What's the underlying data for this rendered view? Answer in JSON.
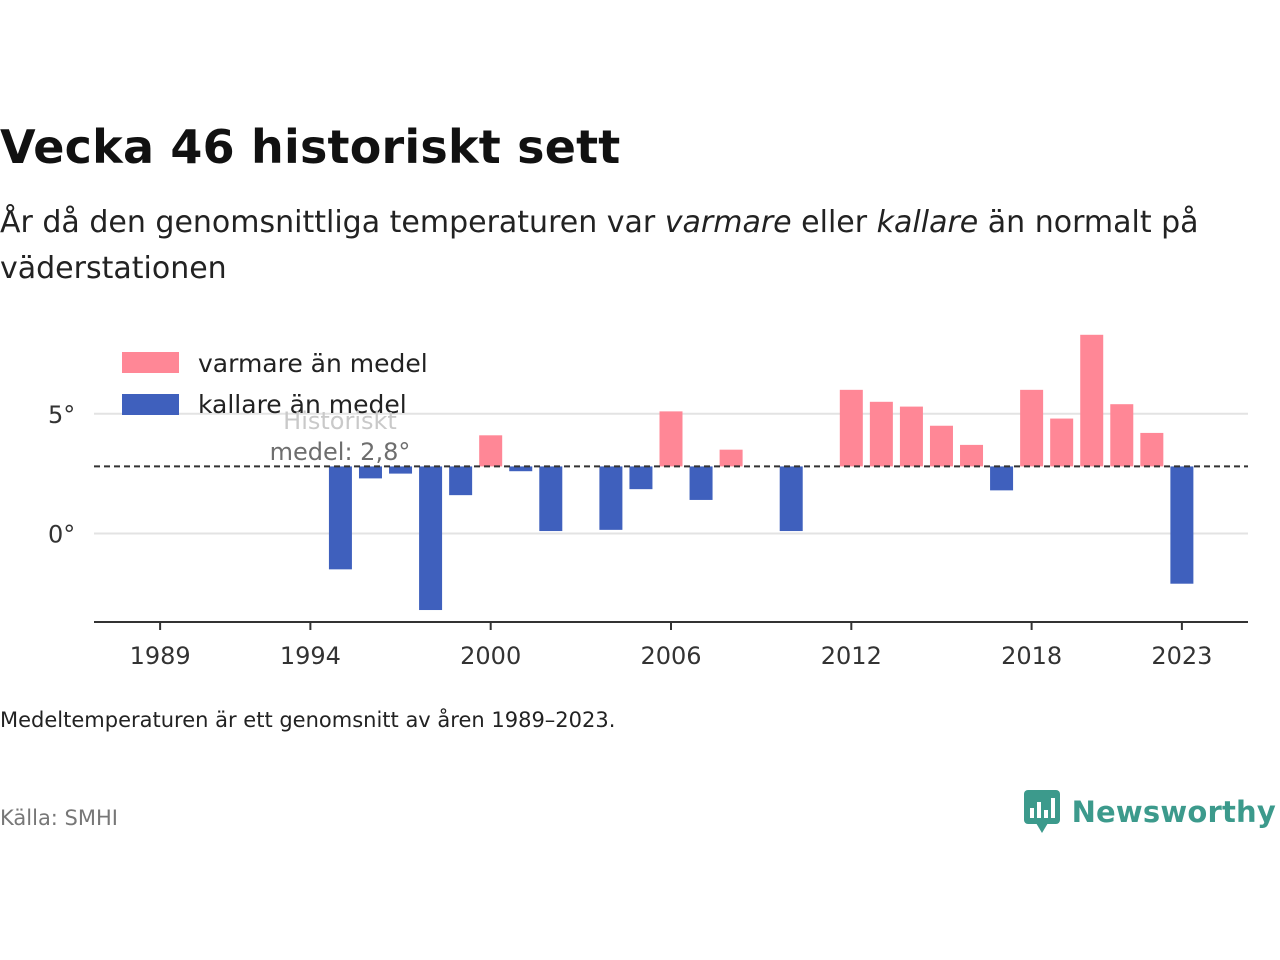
{
  "title": "Vecka 46 historiskt sett",
  "subtitle": {
    "part1": "År då den genomsnittliga temperaturen var ",
    "warm_word": "varmare",
    "part2": " eller ",
    "cold_word": "kallare",
    "part3": " än normalt på väderstationen"
  },
  "note": "Medeltemperaturen är ett genomsnitt av åren 1989–2023.",
  "source": "Källa: SMHI",
  "brand": "Newsworthy",
  "colors": {
    "warm": "#ff8796",
    "cold": "#3f60bd",
    "brand": "#3c9a8c"
  },
  "chart_data": {
    "type": "bar",
    "legend": [
      "varmare än medel",
      "kallare än medel"
    ],
    "legend_position": "top-left",
    "mean_value": 2.8,
    "mean_label_line1": "Historiskt",
    "mean_label_line2": "medel: 2,8°",
    "ylim": [
      -3.7,
      8.5
    ],
    "yticks": [
      0,
      5
    ],
    "ytick_labels": [
      "0°",
      "5°"
    ],
    "xlim": [
      1986.8,
      2025.2
    ],
    "xticks": [
      1989,
      1994,
      2000,
      2006,
      2012,
      2018,
      2023
    ],
    "grid": true,
    "x": [
      1995,
      1996,
      1997,
      1998,
      1999,
      2000,
      2001,
      2002,
      2004,
      2005,
      2006,
      2007,
      2008,
      2010,
      2012,
      2013,
      2014,
      2015,
      2016,
      2017,
      2018,
      2019,
      2020,
      2021,
      2022,
      2023
    ],
    "values": [
      -1.5,
      2.3,
      2.5,
      -3.2,
      1.6,
      4.1,
      2.6,
      0.1,
      0.15,
      1.85,
      5.1,
      1.4,
      3.5,
      0.1,
      6.0,
      5.5,
      5.3,
      4.5,
      3.7,
      1.8,
      6.0,
      4.8,
      8.3,
      5.4,
      4.2,
      -2.1
    ]
  }
}
